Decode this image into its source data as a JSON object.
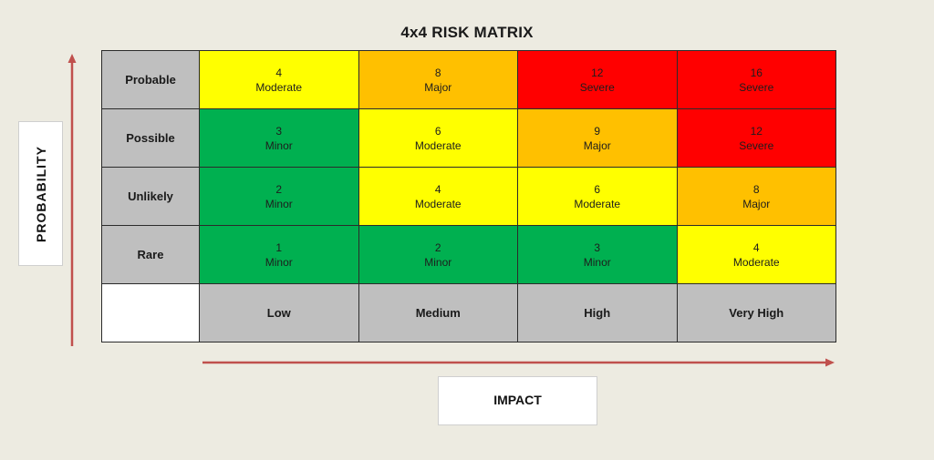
{
  "title": "4x4 RISK MATRIX",
  "axes": {
    "y_label": "PROBABILITY",
    "x_label": "IMPACT"
  },
  "colors": {
    "background": "#edebe1",
    "header": "#bfbfbf",
    "minor": "#00b050",
    "moderate": "#ffff00",
    "major": "#ffc000",
    "severe": "#ff0000",
    "arrow": "#c0504d"
  },
  "columns": [
    "Low",
    "Medium",
    "High",
    "Very High"
  ],
  "rows": [
    {
      "label": "Probable",
      "cells": [
        {
          "score": "4",
          "level": "Moderate"
        },
        {
          "score": "8",
          "level": "Major"
        },
        {
          "score": "12",
          "level": "Severe"
        },
        {
          "score": "16",
          "level": "Severe"
        }
      ]
    },
    {
      "label": "Possible",
      "cells": [
        {
          "score": "3",
          "level": "Minor"
        },
        {
          "score": "6",
          "level": "Moderate"
        },
        {
          "score": "9",
          "level": "Major"
        },
        {
          "score": "12",
          "level": "Severe"
        }
      ]
    },
    {
      "label": "Unlikely",
      "cells": [
        {
          "score": "2",
          "level": "Minor"
        },
        {
          "score": "4",
          "level": "Moderate"
        },
        {
          "score": "6",
          "level": "Moderate"
        },
        {
          "score": "8",
          "level": "Major"
        }
      ]
    },
    {
      "label": "Rare",
      "cells": [
        {
          "score": "1",
          "level": "Minor"
        },
        {
          "score": "2",
          "level": "Minor"
        },
        {
          "score": "3",
          "level": "Minor"
        },
        {
          "score": "4",
          "level": "Moderate"
        }
      ]
    }
  ]
}
